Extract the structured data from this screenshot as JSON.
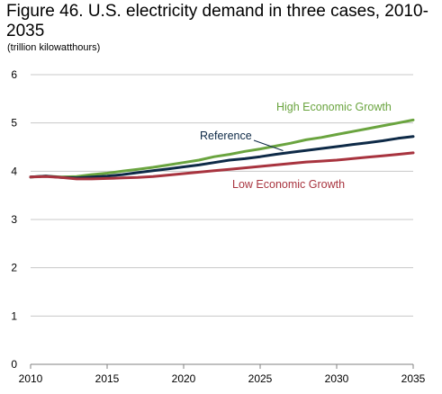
{
  "title": "Figure 46. U.S. electricity demand in three cases, 2010-2035",
  "units": "(trillion kilowatthours)",
  "chart_data": {
    "type": "line",
    "title": "Figure 46. U.S. electricity demand in three cases, 2010-2035",
    "ylabel": "(trillion kilowatthours)",
    "xlabel": "",
    "xlim": [
      2010,
      2035
    ],
    "ylim": [
      0,
      6
    ],
    "x_ticks": [
      2010,
      2015,
      2020,
      2025,
      2030,
      2035
    ],
    "y_ticks": [
      0,
      1,
      2,
      3,
      4,
      5,
      6
    ],
    "grid": "horizontal",
    "x": [
      2010,
      2011,
      2012,
      2013,
      2014,
      2015,
      2016,
      2017,
      2018,
      2019,
      2020,
      2021,
      2022,
      2023,
      2024,
      2025,
      2026,
      2027,
      2028,
      2029,
      2030,
      2031,
      2032,
      2033,
      2034,
      2035
    ],
    "series": [
      {
        "name": "High Economic Growth",
        "color": "#6aa43f",
        "values": [
          3.88,
          3.9,
          3.88,
          3.89,
          3.93,
          3.96,
          4.0,
          4.04,
          4.08,
          4.13,
          4.18,
          4.23,
          4.3,
          4.35,
          4.41,
          4.46,
          4.52,
          4.58,
          4.65,
          4.7,
          4.76,
          4.82,
          4.88,
          4.94,
          5.0,
          5.06
        ]
      },
      {
        "name": "Reference",
        "color": "#0e2a47",
        "values": [
          3.88,
          3.9,
          3.87,
          3.86,
          3.88,
          3.9,
          3.93,
          3.97,
          4.01,
          4.05,
          4.09,
          4.13,
          4.18,
          4.23,
          4.26,
          4.3,
          4.35,
          4.39,
          4.43,
          4.47,
          4.51,
          4.55,
          4.59,
          4.63,
          4.68,
          4.72
        ]
      },
      {
        "name": "Low Economic Growth",
        "color": "#a8343f",
        "values": [
          3.88,
          3.89,
          3.87,
          3.84,
          3.84,
          3.85,
          3.86,
          3.87,
          3.89,
          3.92,
          3.95,
          3.98,
          4.01,
          4.04,
          4.07,
          4.1,
          4.13,
          4.16,
          4.19,
          4.21,
          4.23,
          4.26,
          4.29,
          4.32,
          4.35,
          4.38
        ]
      }
    ]
  }
}
